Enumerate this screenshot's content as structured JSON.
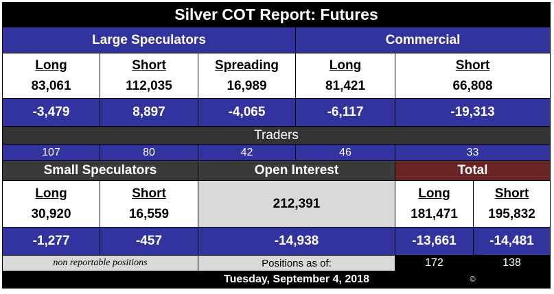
{
  "title": "Silver COT Report: Futures",
  "large_speculators": {
    "header": "Large Speculators",
    "long_label": "Long",
    "short_label": "Short",
    "spreading_label": "Spreading",
    "long": "83,061",
    "short": "112,035",
    "spreading": "16,989",
    "long_change": "-3,479",
    "short_change": "8,897",
    "spreading_change": "-4,065",
    "traders_long": "107",
    "traders_short": "80",
    "traders_spreading": "42"
  },
  "commercial": {
    "header": "Commercial",
    "long_label": "Long",
    "short_label": "Short",
    "long": "81,421",
    "short": "66,808",
    "long_change": "-6,117",
    "short_change": "-19,313",
    "traders_long": "46",
    "traders_short": "33"
  },
  "traders_label": "Traders",
  "small_speculators": {
    "header": "Small Speculators",
    "long_label": "Long",
    "short_label": "Short",
    "long": "30,920",
    "short": "16,559",
    "long_change": "-1,277",
    "short_change": "-457",
    "note": "non reportable positions"
  },
  "open_interest": {
    "header": "Open Interest",
    "value": "212,391",
    "change": "-14,938",
    "positions_as_of_label": "Positions as of:",
    "date": "Tuesday, September 4, 2018"
  },
  "total": {
    "header": "Total",
    "long_label": "Long",
    "short_label": "Short",
    "long": "181,471",
    "short": "195,832",
    "long_change": "-13,661",
    "short_change": "-14,481",
    "traders_long": "172",
    "traders_short": "138"
  },
  "copyright": "©",
  "colors": {
    "blue": "#3333a0",
    "dark_red": "#6b2424",
    "grey": "#d9d9d9",
    "black": "#000000"
  }
}
